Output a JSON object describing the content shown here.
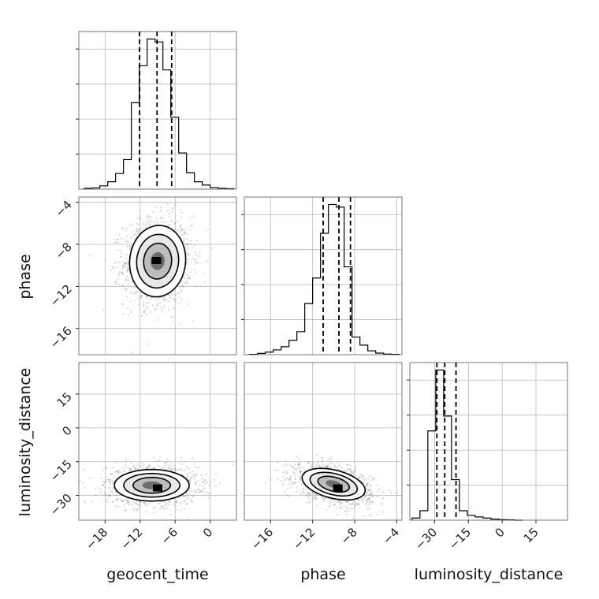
{
  "chart_data": {
    "type": "corner",
    "parameters": [
      {
        "name": "geocent_time",
        "label": "geocent_time",
        "range": [
          -22.5,
          4.5
        ],
        "ticks": [
          -18,
          -12,
          -6,
          0
        ]
      },
      {
        "name": "phase",
        "label": "phase",
        "range": [
          -18.5,
          -3.5
        ],
        "ticks": [
          -16,
          -12,
          -8,
          -4
        ]
      },
      {
        "name": "luminosity_distance",
        "label": "luminosity_distance",
        "range": [
          -41,
          29
        ],
        "ticks": [
          -30,
          -15,
          0,
          15
        ]
      }
    ],
    "diagonal": [
      {
        "parameter": "geocent_time",
        "quantiles": [
          -12.1,
          -9.1,
          -6.6
        ],
        "bin_edges": [
          -21.6,
          -20.25,
          -18.9,
          -17.55,
          -16.2,
          -14.85,
          -13.5,
          -12.15,
          -10.8,
          -9.45,
          -8.1,
          -6.75,
          -5.4,
          -4.05,
          -2.7,
          -1.35,
          0,
          1.35,
          2.7,
          4.05
        ],
        "counts": [
          2,
          3,
          8,
          18,
          38,
          72,
          210,
          300,
          365,
          358,
          290,
          175,
          88,
          40,
          18,
          10,
          4,
          2,
          1
        ]
      },
      {
        "parameter": "phase",
        "quantiles": [
          -11.0,
          -9.5,
          -8.4
        ],
        "bin_edges": [
          -18,
          -17.25,
          -16.5,
          -15.75,
          -15,
          -14.25,
          -13.5,
          -12.75,
          -12,
          -11.25,
          -10.5,
          -9.75,
          -9,
          -8.25,
          -7.5,
          -6.75,
          -6,
          -5.25,
          -4.5,
          -3.75
        ],
        "counts": [
          1,
          4,
          8,
          15,
          25,
          45,
          72,
          160,
          240,
          380,
          470,
          462,
          275,
          55,
          30,
          12,
          5,
          2,
          1
        ]
      },
      {
        "parameter": "luminosity_distance",
        "quantiles": [
          -29,
          -25.5,
          -20.5
        ],
        "bin_edges": [
          -40,
          -36.5,
          -33,
          -29.5,
          -26,
          -22.5,
          -19,
          -15.5,
          -12,
          -8.5,
          -5,
          -1.5,
          2,
          5.5,
          9
        ],
        "counts": [
          8,
          35,
          330,
          555,
          385,
          150,
          35,
          18,
          12,
          8,
          4,
          2,
          1,
          0
        ]
      }
    ],
    "pairs": [
      {
        "x": "geocent_time",
        "y": "phase",
        "center": [
          -9.0,
          -9.6
        ],
        "spread": [
          2.4,
          1.7
        ],
        "correlation": 0.05,
        "contour_levels": [
          0.5,
          1.0,
          1.5,
          2.0
        ],
        "peak": [
          -9.2,
          -9.5
        ]
      },
      {
        "x": "geocent_time",
        "y": "luminosity_distance",
        "center": [
          -10.0,
          -25.5
        ],
        "spread": [
          3.2,
          3.5
        ],
        "correlation": 0.0,
        "contour_levels": [
          0.5,
          1.0,
          1.5,
          2.0
        ],
        "peak": [
          -9.0,
          -26.5
        ]
      },
      {
        "x": "phase",
        "y": "luminosity_distance",
        "center": [
          -10.0,
          -25.0
        ],
        "spread": [
          1.5,
          3.5
        ],
        "correlation": -0.4,
        "contour_levels": [
          0.5,
          1.0,
          1.5,
          2.0
        ],
        "peak": [
          -9.6,
          -26.5
        ]
      }
    ],
    "grid": true,
    "title": "",
    "legend": "none"
  }
}
